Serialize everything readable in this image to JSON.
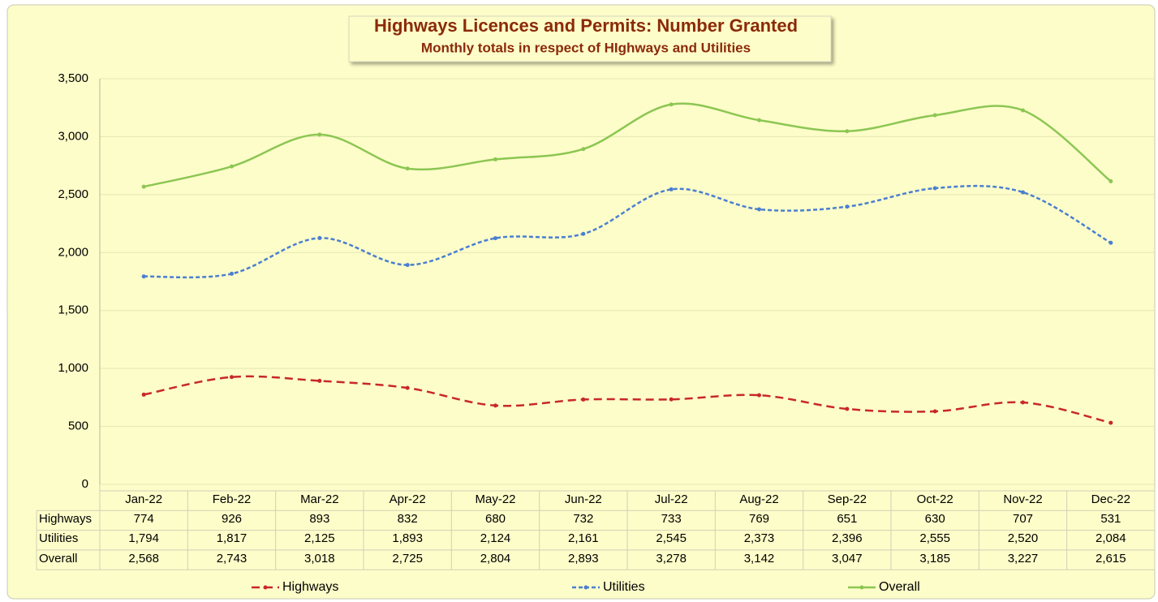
{
  "chart_data": {
    "type": "line",
    "title": "Highways Licences and Permits: Number Granted",
    "subtitle": "Monthly totals in respect of HIghways and Utilities",
    "categories": [
      "Jan-22",
      "Feb-22",
      "Mar-22",
      "Apr-22",
      "May-22",
      "Jun-22",
      "Jul-22",
      "Aug-22",
      "Sep-22",
      "Oct-22",
      "Nov-22",
      "Dec-22"
    ],
    "series": [
      {
        "name": "Highways",
        "color": "#c8282a",
        "dash": "10 6",
        "values": [
          774,
          926,
          893,
          832,
          680,
          732,
          733,
          769,
          651,
          630,
          707,
          531
        ]
      },
      {
        "name": "Utilities",
        "color": "#4a7fd0",
        "dash": "5 3",
        "values": [
          1794,
          1817,
          2125,
          1893,
          2124,
          2161,
          2545,
          2373,
          2396,
          2555,
          2520,
          2084
        ],
        "value_labels": [
          "1,794",
          "1,817",
          "2,125",
          "1,893",
          "2,124",
          "2,161",
          "2,545",
          "2,373",
          "2,396",
          "2,555",
          "2,520",
          "2,084"
        ]
      },
      {
        "name": "Overall",
        "color": "#8cc653",
        "dash": "none",
        "values": [
          2568,
          2743,
          3018,
          2725,
          2804,
          2893,
          3278,
          3142,
          3047,
          3185,
          3227,
          2615
        ],
        "value_labels": [
          "2,568",
          "2,743",
          "3,018",
          "2,725",
          "2,804",
          "2,893",
          "3,278",
          "3,142",
          "3,047",
          "3,185",
          "3,227",
          "2,615"
        ]
      }
    ],
    "ylim": [
      0,
      3500
    ],
    "yticks": [
      0,
      500,
      {
        "value": 1000,
        "label": "1,000"
      },
      {
        "value": 1500,
        "label": "1,500"
      },
      {
        "value": 2000,
        "label": "2,000"
      },
      {
        "value": 2500,
        "label": "2,500"
      },
      {
        "value": 3000,
        "label": "3,000"
      },
      {
        "value": 3500,
        "label": "3,500"
      }
    ],
    "grid": true,
    "smooth": true,
    "legend": "bottom"
  }
}
